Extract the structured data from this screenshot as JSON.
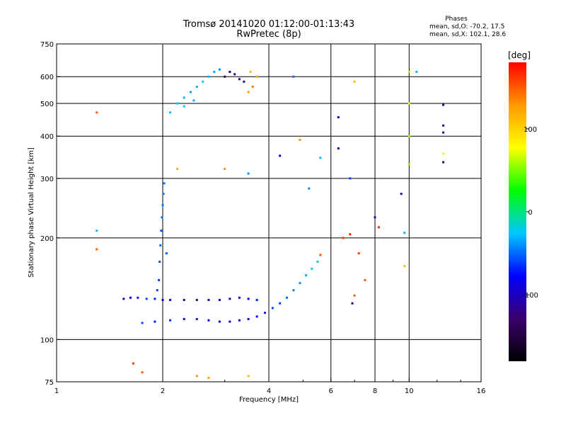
{
  "chart_data": {
    "type": "scatter",
    "title": "Tromsø 20141020 01:12:00-01:13:43",
    "subtitle": "RwPretec (8p)",
    "xlabel": "Frequency [MHz]",
    "ylabel": "Stationary phase Virtual Height [km]",
    "xscale": "log",
    "yscale": "log",
    "xlim": [
      1,
      16
    ],
    "ylim": [
      75,
      750
    ],
    "x_ticks": [
      1,
      2,
      4,
      6,
      8,
      10,
      16
    ],
    "y_ticks": [
      75,
      100,
      200,
      300,
      400,
      500,
      600,
      750
    ],
    "grid": true,
    "stats": {
      "title": "Phases",
      "line1": "mean, sd,O: -70.2, 17.5",
      "line2": "mean, sd,X: 102.1, 28.6"
    },
    "colorbar": {
      "unit": "[deg]",
      "ticks": [
        100,
        0,
        -100
      ],
      "range": [
        -180,
        180
      ],
      "colors": [
        "#000000",
        "#3c006e",
        "#0000ff",
        "#00c8ff",
        "#00ff00",
        "#ffff00",
        "#ff9900",
        "#ff0000"
      ]
    },
    "clusters": [
      {
        "name": "e-layer trace",
        "points": [
          [
            1.55,
            132,
            -80
          ],
          [
            1.62,
            133,
            -85
          ],
          [
            1.7,
            133,
            -75
          ],
          [
            1.8,
            132,
            -60
          ],
          [
            1.9,
            132,
            -70
          ],
          [
            2.0,
            131,
            -90
          ],
          [
            2.1,
            131,
            -100
          ],
          [
            2.3,
            131,
            -110
          ],
          [
            2.5,
            131,
            -120
          ],
          [
            2.7,
            131,
            -115
          ],
          [
            2.9,
            131,
            -110
          ],
          [
            3.1,
            132,
            -100
          ],
          [
            3.3,
            133,
            -90
          ],
          [
            3.5,
            132,
            -80
          ],
          [
            3.7,
            131,
            -70
          ]
        ]
      },
      {
        "name": "f-layer low trace",
        "points": [
          [
            1.75,
            112,
            -60
          ],
          [
            1.9,
            113,
            -70
          ],
          [
            2.1,
            114,
            -65
          ],
          [
            2.3,
            115,
            -75
          ],
          [
            2.5,
            115,
            -70
          ],
          [
            2.7,
            114,
            -85
          ],
          [
            2.9,
            113,
            -90
          ],
          [
            3.1,
            113,
            -95
          ],
          [
            3.3,
            114,
            -90
          ],
          [
            3.5,
            115,
            -85
          ],
          [
            3.7,
            117,
            -75
          ],
          [
            3.9,
            120,
            -70
          ],
          [
            4.1,
            124,
            -60
          ],
          [
            4.3,
            128,
            -60
          ],
          [
            4.5,
            133,
            -50
          ],
          [
            4.7,
            140,
            -45
          ],
          [
            4.9,
            147,
            -40
          ],
          [
            5.1,
            155,
            -30
          ],
          [
            5.3,
            162,
            -20
          ],
          [
            5.5,
            170,
            -10
          ],
          [
            5.6,
            178,
            150
          ]
        ]
      },
      {
        "name": "vertical column near 2 MHz",
        "points": [
          [
            1.95,
            150,
            -60
          ],
          [
            1.96,
            170,
            -55
          ],
          [
            1.97,
            190,
            -50
          ],
          [
            1.98,
            210,
            -55
          ],
          [
            1.99,
            230,
            -50
          ],
          [
            2.0,
            250,
            -45
          ],
          [
            2.01,
            270,
            -50
          ],
          [
            2.02,
            290,
            -45
          ],
          [
            1.93,
            140,
            -60
          ],
          [
            2.05,
            180,
            -55
          ]
        ]
      },
      {
        "name": "upper cluster 2.1-2.8 MHz",
        "points": [
          [
            2.1,
            470,
            -30
          ],
          [
            2.2,
            500,
            -25
          ],
          [
            2.3,
            520,
            -30
          ],
          [
            2.4,
            540,
            -35
          ],
          [
            2.5,
            560,
            -30
          ],
          [
            2.6,
            580,
            -25
          ],
          [
            2.7,
            600,
            -30
          ],
          [
            2.8,
            620,
            -35
          ],
          [
            2.9,
            630,
            -40
          ],
          [
            2.3,
            490,
            -20
          ],
          [
            2.45,
            510,
            -30
          ]
        ]
      },
      {
        "name": "upper cluster 3.0-3.6 MHz",
        "points": [
          [
            3.0,
            600,
            -140
          ],
          [
            3.1,
            620,
            -130
          ],
          [
            3.2,
            610,
            -125
          ],
          [
            3.3,
            590,
            -120
          ],
          [
            3.4,
            580,
            -110
          ],
          [
            3.5,
            540,
            130
          ],
          [
            3.6,
            560,
            140
          ],
          [
            3.7,
            600,
            120
          ],
          [
            3.55,
            620,
            110
          ]
        ]
      },
      {
        "name": "scattered points",
        "points": [
          [
            1.3,
            470,
            150
          ],
          [
            1.3,
            210,
            -30
          ],
          [
            1.3,
            185,
            150
          ],
          [
            2.2,
            320,
            120
          ],
          [
            3.0,
            320,
            130
          ],
          [
            3.5,
            310,
            -40
          ],
          [
            4.3,
            350,
            -80
          ],
          [
            4.7,
            600,
            -50
          ],
          [
            4.9,
            390,
            130
          ],
          [
            5.2,
            280,
            -40
          ],
          [
            5.6,
            345,
            -30
          ],
          [
            6.3,
            455,
            -100
          ],
          [
            6.3,
            368,
            -110
          ],
          [
            6.8,
            300,
            -60
          ],
          [
            7.0,
            580,
            110
          ],
          [
            8.0,
            230,
            -110
          ],
          [
            8.2,
            215,
            170
          ],
          [
            9.5,
            270,
            -100
          ],
          [
            9.7,
            207,
            -30
          ],
          [
            9.7,
            165,
            110
          ],
          [
            10.0,
            620,
            60
          ],
          [
            10.0,
            500,
            70
          ],
          [
            10.0,
            400,
            60
          ],
          [
            10.0,
            330,
            55
          ],
          [
            10.5,
            620,
            -30
          ],
          [
            12.5,
            495,
            -110
          ],
          [
            12.5,
            430,
            -110
          ],
          [
            12.5,
            410,
            -105
          ],
          [
            12.5,
            355,
            70
          ],
          [
            12.5,
            335,
            -120
          ],
          [
            6.5,
            200,
            160
          ],
          [
            6.8,
            205,
            170
          ],
          [
            7.2,
            180,
            160
          ],
          [
            7.5,
            150,
            150
          ],
          [
            7.0,
            135,
            150
          ],
          [
            6.9,
            128,
            -120
          ],
          [
            1.65,
            85,
            160
          ],
          [
            1.75,
            80,
            150
          ],
          [
            2.5,
            78,
            130
          ],
          [
            2.7,
            77,
            125
          ],
          [
            3.5,
            78,
            110
          ]
        ]
      }
    ]
  }
}
